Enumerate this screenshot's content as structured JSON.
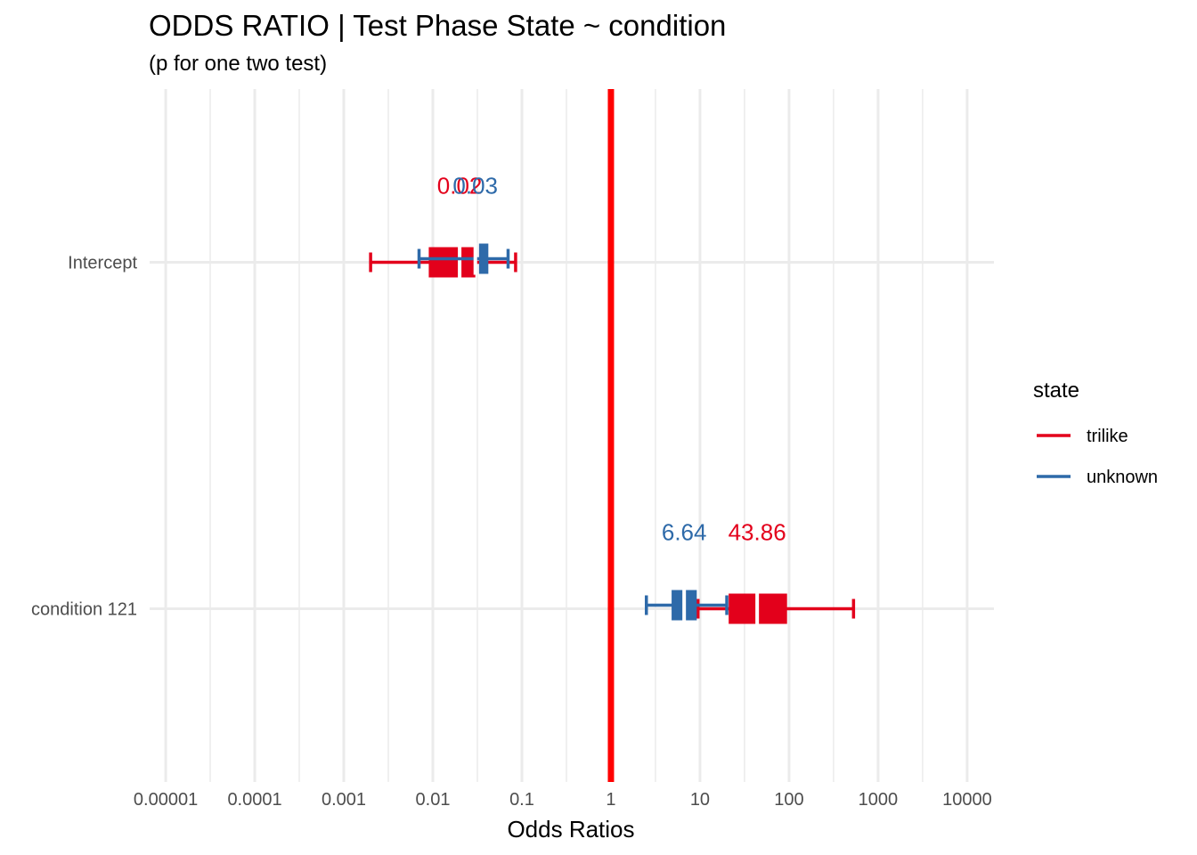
{
  "chart_data": {
    "type": "forest",
    "title": "ODDS RATIO | Test Phase State ~ condition",
    "subtitle": "(p for one two test)",
    "xlabel": "Odds Ratios",
    "ylabel": "",
    "x_scale": "log10",
    "xlim": [
      6.6e-06,
      20000
    ],
    "x_ticks": [
      1e-05,
      0.0001,
      0.001,
      0.01,
      0.1,
      1,
      10,
      100,
      1000,
      10000
    ],
    "x_tick_labels": [
      "0.00001",
      "0.0001",
      "0.001",
      "0.01",
      "0.1",
      "1",
      "10",
      "100",
      "1000",
      "10000"
    ],
    "categories": [
      "Intercept",
      "condition 121"
    ],
    "reference_line": {
      "x": 1,
      "color": "#FF0000"
    },
    "grid": true,
    "legend": {
      "title": "state",
      "position": "right"
    },
    "series": [
      {
        "name": "trilike",
        "color": "#E3001B",
        "points": [
          {
            "category": "Intercept",
            "or": 0.02,
            "label": "0.02",
            "ci95": [
              0.002,
              0.085
            ],
            "ci50": [
              0.009,
              0.03
            ]
          },
          {
            "category": "condition 121",
            "or": 43.86,
            "label": "43.86",
            "ci95": [
              9.5,
              530
            ],
            "ci50": [
              21,
              95
            ]
          }
        ]
      },
      {
        "name": "unknown",
        "color": "#2E6AA9",
        "points": [
          {
            "category": "Intercept",
            "or": 0.03,
            "label": "0.03",
            "ci95": [
              0.007,
              0.07
            ],
            "ci50": [
              0.033,
              0.042
            ]
          },
          {
            "category": "condition 121",
            "or": 6.64,
            "label": "6.64",
            "ci95": [
              2.5,
              20
            ],
            "ci50": [
              4.8,
              9.2
            ]
          }
        ]
      }
    ]
  }
}
